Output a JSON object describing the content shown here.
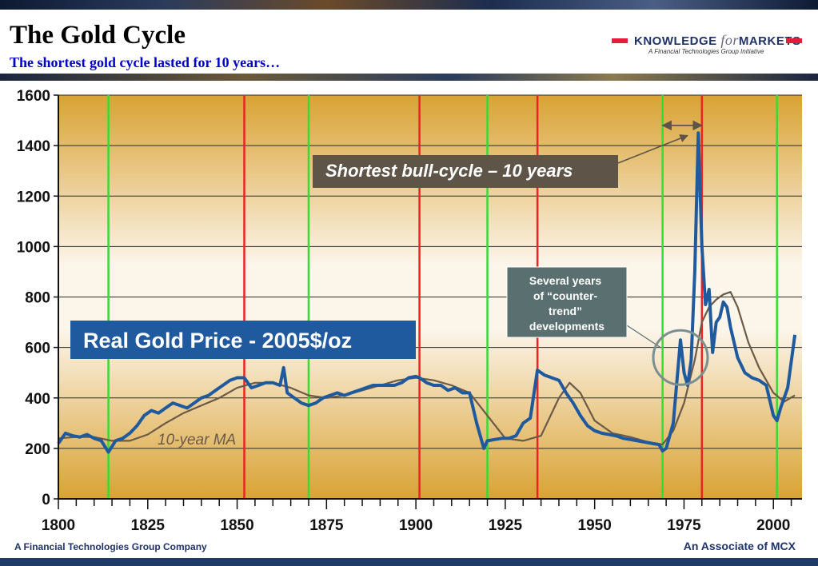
{
  "header": {
    "title": "The Gold Cycle",
    "subtitle": "The shortest gold cycle lasted for 10 years…",
    "brand_knowledge": "KNOWLEDGE",
    "brand_for": "for",
    "brand_markets": "MARKETS",
    "brand_tagline": "A Financial Technologies Group Initiative"
  },
  "footer": {
    "left": "A Financial Technologies Group Company",
    "right": "An Associate of MCX"
  },
  "colors": {
    "real_price_line": "#1f5a9e",
    "ma_line": "#6b5a48",
    "cycle_low": "#33dd33",
    "cycle_high": "#ee2222",
    "label_box_blue": "#1f5a9e",
    "label_box_dark": "#5e5548",
    "label_box_teal": "#5a7070"
  },
  "chart_data": {
    "type": "line",
    "title": "",
    "xlabel": "",
    "ylabel": "",
    "xlim": [
      1800,
      2008
    ],
    "ylim": [
      0,
      1600
    ],
    "xticks": [
      1800,
      1825,
      1850,
      1875,
      1900,
      1925,
      1950,
      1975,
      2000
    ],
    "yticks": [
      0,
      200,
      400,
      600,
      800,
      1000,
      1200,
      1400,
      1600
    ],
    "grid": true,
    "cycle_lows": [
      1814,
      1870,
      1920,
      1969,
      2001
    ],
    "cycle_highs": [
      1852,
      1901,
      1934,
      1980
    ],
    "annotations": {
      "real_price_label": "Real Gold Price - 2005$/oz",
      "ma_label": "10-year MA",
      "bull_label": "Shortest bull-cycle – 10 years",
      "counter_label": "Several years of “counter-trend” developments"
    },
    "series": [
      {
        "name": "Real Gold Price - 2005$/oz",
        "x": [
          1800,
          1802,
          1804,
          1806,
          1808,
          1810,
          1812,
          1814,
          1816,
          1818,
          1820,
          1822,
          1824,
          1826,
          1828,
          1830,
          1832,
          1834,
          1836,
          1838,
          1840,
          1842,
          1844,
          1846,
          1848,
          1850,
          1852,
          1854,
          1856,
          1858,
          1860,
          1862,
          1863,
          1864,
          1866,
          1868,
          1870,
          1872,
          1874,
          1876,
          1878,
          1880,
          1882,
          1884,
          1886,
          1888,
          1890,
          1892,
          1894,
          1896,
          1898,
          1900,
          1901,
          1903,
          1905,
          1907,
          1909,
          1911,
          1913,
          1915,
          1917,
          1919,
          1920,
          1922,
          1924,
          1926,
          1928,
          1930,
          1932,
          1934,
          1936,
          1938,
          1940,
          1942,
          1944,
          1946,
          1948,
          1950,
          1952,
          1954,
          1956,
          1958,
          1960,
          1962,
          1964,
          1966,
          1968,
          1969,
          1970,
          1972,
          1974,
          1975,
          1976,
          1977,
          1978,
          1979,
          1980,
          1981,
          1982,
          1983,
          1984,
          1985,
          1986,
          1987,
          1988,
          1990,
          1992,
          1994,
          1996,
          1998,
          2000,
          2001,
          2002,
          2004,
          2006
        ],
        "y": [
          220,
          260,
          250,
          245,
          255,
          240,
          230,
          185,
          230,
          240,
          260,
          290,
          330,
          350,
          340,
          360,
          380,
          370,
          360,
          380,
          400,
          410,
          430,
          450,
          470,
          480,
          480,
          440,
          450,
          460,
          460,
          450,
          520,
          420,
          400,
          380,
          370,
          380,
          400,
          410,
          420,
          410,
          420,
          430,
          440,
          450,
          450,
          450,
          450,
          460,
          480,
          485,
          480,
          460,
          450,
          450,
          430,
          440,
          420,
          420,
          300,
          200,
          230,
          235,
          240,
          240,
          250,
          300,
          320,
          510,
          490,
          480,
          470,
          420,
          380,
          330,
          290,
          270,
          260,
          255,
          250,
          240,
          235,
          230,
          225,
          220,
          215,
          190,
          200,
          300,
          630,
          500,
          450,
          550,
          900,
          1450,
          1000,
          770,
          830,
          580,
          700,
          720,
          780,
          760,
          680,
          560,
          500,
          480,
          470,
          450,
          330,
          310,
          360,
          440,
          650
        ]
      },
      {
        "name": "10-year MA",
        "x": [
          1800,
          1805,
          1810,
          1815,
          1820,
          1825,
          1830,
          1835,
          1840,
          1845,
          1850,
          1855,
          1860,
          1865,
          1870,
          1875,
          1880,
          1885,
          1890,
          1895,
          1900,
          1905,
          1910,
          1915,
          1920,
          1925,
          1930,
          1935,
          1940,
          1943,
          1946,
          1950,
          1955,
          1960,
          1965,
          1969,
          1972,
          1975,
          1978,
          1980,
          1982,
          1984,
          1986,
          1988,
          1990,
          1993,
          1996,
          2000,
          2003,
          2006
        ],
        "y": [
          240,
          245,
          245,
          230,
          230,
          255,
          300,
          340,
          370,
          400,
          440,
          460,
          460,
          440,
          410,
          400,
          410,
          430,
          450,
          470,
          480,
          470,
          450,
          420,
          330,
          240,
          230,
          250,
          400,
          460,
          420,
          310,
          260,
          245,
          225,
          215,
          270,
          380,
          550,
          700,
          760,
          790,
          810,
          820,
          760,
          620,
          520,
          420,
          385,
          410
        ]
      }
    ]
  }
}
